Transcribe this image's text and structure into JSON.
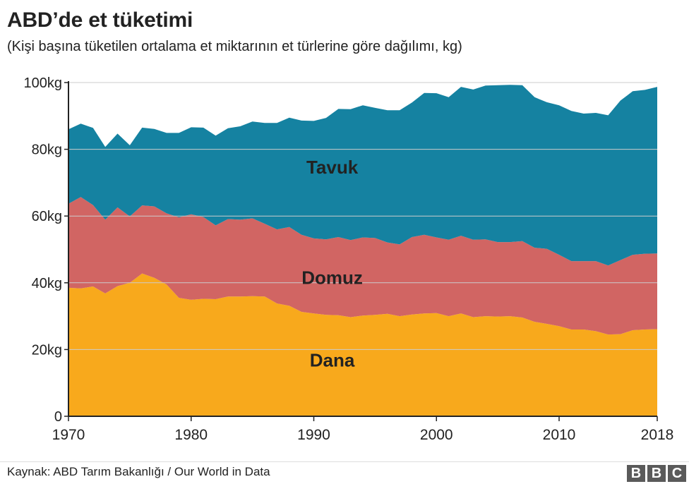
{
  "header": {
    "title": "ABD’de et tüketimi",
    "subtitle": "(Kişi başına tüketilen ortalama et miktarının et türlerine göre dağılımı, kg)"
  },
  "footer": {
    "source": "Kaynak: ABD Tarım Bakanlığı / Our World in Data",
    "logo_letters": [
      "B",
      "B",
      "C"
    ]
  },
  "colors": {
    "Dana": "#f8a91c",
    "Domuz": "#d16563",
    "Tavuk": "#1582a1",
    "grid": "#cccccc",
    "axis": "#222222"
  },
  "chart_data": {
    "type": "area",
    "stacked": true,
    "title": "ABD’de et tüketimi",
    "subtitle": "(Kişi başına tüketilen ortalama et miktarının et türlerine göre dağılımı, kg)",
    "xlabel": "",
    "ylabel": "",
    "x": [
      1970,
      1971,
      1972,
      1973,
      1974,
      1975,
      1976,
      1977,
      1978,
      1979,
      1980,
      1981,
      1982,
      1983,
      1984,
      1985,
      1986,
      1987,
      1988,
      1989,
      1990,
      1991,
      1992,
      1993,
      1994,
      1995,
      1996,
      1997,
      1998,
      1999,
      2000,
      2001,
      2002,
      2003,
      2004,
      2005,
      2006,
      2007,
      2008,
      2009,
      2010,
      2011,
      2012,
      2013,
      2014,
      2015,
      2016,
      2017,
      2018
    ],
    "xlim": [
      1970,
      2018
    ],
    "x_ticks": [
      1970,
      1980,
      1990,
      2000,
      2010,
      2018
    ],
    "x_tick_labels": [
      "1970",
      "1980",
      "1990",
      "2000",
      "2010",
      "2018"
    ],
    "ylim": [
      0,
      100
    ],
    "y_ticks": [
      0,
      20,
      40,
      60,
      80,
      100
    ],
    "y_tick_labels": [
      "0",
      "20kg",
      "40kg",
      "60kg",
      "80kg",
      "100kg"
    ],
    "grid": true,
    "legend": "inline labels",
    "series": [
      {
        "name": "Dana",
        "values": [
          38.5,
          38.3,
          38.9,
          36.8,
          39.0,
          40.0,
          42.8,
          41.5,
          39.5,
          35.5,
          34.9,
          35.2,
          35.1,
          35.9,
          35.9,
          36.0,
          35.9,
          33.8,
          33.1,
          31.3,
          30.8,
          30.4,
          30.3,
          29.7,
          30.2,
          30.4,
          30.7,
          30.0,
          30.5,
          30.8,
          30.9,
          30.0,
          30.8,
          29.7,
          30.0,
          29.9,
          30.0,
          29.6,
          28.3,
          27.7,
          27.0,
          26.0,
          26.0,
          25.5,
          24.5,
          24.6,
          25.8,
          26.0,
          26.1
        ]
      },
      {
        "name": "Domuz",
        "values": [
          25.2,
          27.4,
          24.4,
          22.1,
          23.6,
          19.9,
          20.4,
          21.4,
          21.3,
          24.1,
          25.6,
          24.5,
          22.1,
          23.2,
          23.0,
          23.3,
          21.8,
          22.2,
          23.6,
          23.1,
          22.5,
          22.6,
          23.4,
          23.1,
          23.4,
          23.0,
          21.4,
          21.5,
          23.2,
          23.6,
          22.7,
          22.9,
          23.3,
          23.2,
          23.0,
          22.3,
          22.2,
          22.9,
          22.2,
          22.5,
          21.4,
          20.5,
          20.5,
          21.0,
          20.7,
          22.2,
          22.6,
          22.7,
          22.7
        ]
      },
      {
        "name": "Tavuk",
        "values": [
          22.3,
          22.0,
          23.1,
          21.8,
          22.1,
          21.3,
          23.3,
          23.2,
          24.1,
          25.3,
          26.1,
          26.8,
          26.9,
          27.2,
          28.0,
          29.0,
          30.2,
          31.9,
          32.8,
          34.2,
          35.2,
          36.4,
          38.4,
          39.2,
          39.6,
          39.0,
          39.6,
          40.2,
          40.3,
          42.5,
          43.2,
          42.7,
          44.6,
          45.0,
          46.1,
          47.0,
          47.1,
          46.7,
          45.1,
          43.9,
          44.8,
          45.0,
          44.2,
          44.4,
          45.0,
          47.8,
          49.0,
          49.1,
          49.9
        ]
      }
    ]
  }
}
